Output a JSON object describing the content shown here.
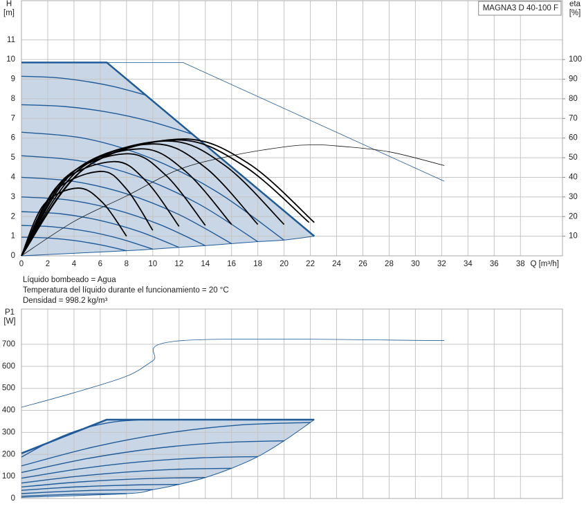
{
  "chart_data": [
    {
      "type": "line",
      "title": "MAGNA3 D 40-100 F",
      "x_label": "Q [m³/h]",
      "y_label": "H",
      "y_unit": "[m]",
      "y2_label": "eta",
      "y2_unit": "[%]",
      "xlim": [
        0,
        41.2
      ],
      "xticks": [
        0,
        2,
        4,
        6,
        8,
        10,
        12,
        14,
        16,
        18,
        20,
        22,
        24,
        26,
        28,
        30,
        32,
        34,
        36,
        38
      ],
      "ylim": [
        0,
        13
      ],
      "yticks": [
        0,
        1,
        2,
        3,
        4,
        5,
        6,
        7,
        8,
        9,
        10,
        11
      ],
      "y2lim": [
        0,
        130
      ],
      "y2ticks": [
        10,
        20,
        30,
        40,
        50,
        60,
        70,
        80,
        90,
        100
      ],
      "grid": true,
      "series": [
        {
          "color": "#1f5b98",
          "width": 2.5,
          "smooth": false,
          "x": [
            0,
            6.5,
            22.3
          ],
          "values": [
            9.85,
            9.85,
            1.0
          ]
        },
        {
          "color": "#1f5b98",
          "width": 1,
          "smooth": true,
          "fill": "#c8d6e6",
          "x": [
            0,
            8,
            10,
            12,
            14,
            16,
            18,
            20,
            22.3
          ],
          "values": [
            0,
            0.26,
            0.34,
            0.43,
            0.52,
            0.62,
            0.72,
            0.8,
            1.0
          ]
        },
        {
          "color": "#1f5b98",
          "width": 1.4,
          "smooth": true,
          "x": [
            0,
            2.35,
            4.7,
            7.05,
            9.4
          ],
          "values": [
            9.15,
            9.09,
            8.91,
            8.62,
            8.2
          ]
        },
        {
          "color": "#1f5b98",
          "width": 1.4,
          "smooth": true,
          "x": [
            0,
            3.25,
            6.5,
            9.75,
            13
          ],
          "values": [
            7.7,
            7.61,
            7.33,
            6.86,
            6.2
          ]
        },
        {
          "color": "#1f5b98",
          "width": 1.4,
          "smooth": true,
          "x": [
            0,
            5,
            10,
            15,
            20
          ],
          "values": [
            6.3,
            5.96,
            4.93,
            3.21,
            0.8
          ]
        },
        {
          "color": "#1f5b98",
          "width": 1.4,
          "smooth": true,
          "x": [
            0,
            4.5,
            9,
            13.5,
            18
          ],
          "values": [
            5.1,
            4.83,
            4.01,
            2.64,
            0.72
          ]
        },
        {
          "color": "#1f5b98",
          "width": 1.4,
          "smooth": true,
          "x": [
            0,
            4,
            8,
            12,
            16
          ],
          "values": [
            4.0,
            3.79,
            3.16,
            2.1,
            0.62
          ]
        },
        {
          "color": "#1f5b98",
          "width": 1.4,
          "smooth": true,
          "x": [
            0,
            3.5,
            7,
            10.5,
            14
          ],
          "values": [
            3.0,
            2.85,
            2.38,
            1.6,
            0.52
          ]
        },
        {
          "color": "#1f5b98",
          "width": 1.4,
          "smooth": true,
          "x": [
            0,
            3,
            6,
            9,
            12
          ],
          "values": [
            2.25,
            2.14,
            1.8,
            1.23,
            0.43
          ]
        },
        {
          "color": "#1f5b98",
          "width": 1.4,
          "smooth": true,
          "x": [
            0,
            2.5,
            5,
            7.5,
            10
          ],
          "values": [
            1.55,
            1.47,
            1.25,
            0.87,
            0.34
          ]
        },
        {
          "color": "#1f5b98",
          "width": 1.4,
          "smooth": true,
          "x": [
            0,
            2,
            4,
            6,
            8
          ],
          "values": [
            0.95,
            0.91,
            0.78,
            0.56,
            0.26
          ]
        },
        {
          "color": "#1f5b98",
          "width": 0.8,
          "smooth": false,
          "x": [
            6.5,
            12.3,
            32.2
          ],
          "values": [
            9.85,
            9.85,
            3.8
          ]
        },
        {
          "color": "#111111",
          "width": 0.8,
          "smooth": true,
          "axis": "y2",
          "x": [
            0,
            4,
            8,
            12,
            16,
            20,
            22,
            24,
            28,
            32.2
          ],
          "values": [
            0,
            17.5,
            30.5,
            44,
            51,
            55.5,
            56.5,
            56,
            53,
            46
          ]
        },
        {
          "color": "#000000",
          "width": 1.8,
          "smooth": true,
          "axis": "y2",
          "x": [
            0,
            1.7,
            4.3,
            6.2,
            8
          ],
          "values": [
            0,
            26,
            34.5,
            27,
            10
          ]
        },
        {
          "color": "#000000",
          "width": 1.8,
          "smooth": true,
          "axis": "y2",
          "x": [
            0,
            2.4,
            6,
            8,
            10
          ],
          "values": [
            0,
            32,
            43,
            34,
            13
          ]
        },
        {
          "color": "#000000",
          "width": 1.8,
          "smooth": true,
          "axis": "y2",
          "x": [
            0,
            2.8,
            7,
            9.5,
            12
          ],
          "values": [
            0,
            36,
            48,
            38,
            15
          ]
        },
        {
          "color": "#000000",
          "width": 1.8,
          "smooth": true,
          "axis": "y2",
          "x": [
            0,
            3.2,
            8,
            11,
            14
          ],
          "values": [
            0,
            39,
            52,
            41,
            15.5
          ]
        },
        {
          "color": "#000000",
          "width": 1.8,
          "smooth": true,
          "axis": "y2",
          "x": [
            0,
            3.6,
            9,
            12.5,
            16
          ],
          "values": [
            0,
            41,
            54.5,
            43,
            16
          ]
        },
        {
          "color": "#000000",
          "width": 1.8,
          "smooth": true,
          "axis": "y2",
          "x": [
            0,
            4,
            10,
            14,
            18
          ],
          "values": [
            0,
            43,
            57,
            45,
            16
          ]
        },
        {
          "color": "#000000",
          "width": 1.8,
          "smooth": true,
          "axis": "y2",
          "x": [
            0,
            4.4,
            11,
            15.5,
            20
          ],
          "values": [
            0,
            44,
            58.5,
            46,
            16
          ]
        },
        {
          "color": "#000000",
          "width": 1.8,
          "smooth": true,
          "axis": "y2",
          "x": [
            0,
            4.7,
            11.8,
            16.9,
            21.9
          ],
          "values": [
            0,
            44,
            59,
            46,
            17
          ]
        },
        {
          "color": "#000000",
          "width": 1.8,
          "smooth": true,
          "axis": "y2",
          "x": [
            0,
            4.9,
            12.2,
            17.3,
            22.3
          ],
          "values": [
            0,
            45,
            59.5,
            47,
            17
          ]
        }
      ]
    },
    {
      "type": "line",
      "y_label": "P1",
      "y_unit": "[W]",
      "xlim": [
        0,
        41.2
      ],
      "ylim": [
        0,
        860
      ],
      "yticks": [
        0,
        100,
        200,
        300,
        400,
        500,
        600,
        700
      ],
      "grid": true,
      "series": [
        {
          "color": "#1f5b98",
          "width": 2.5,
          "smooth": false,
          "x": [
            0,
            6.5,
            22.3
          ],
          "values": [
            205,
            358,
            358
          ]
        },
        {
          "color": "#1f5b98",
          "width": 1,
          "smooth": true,
          "fill": "#c8d6e6",
          "x": [
            0,
            8,
            10,
            12,
            14,
            16,
            18,
            20,
            22,
            22.3
          ],
          "values": [
            5,
            22,
            40,
            64,
            95,
            137,
            190,
            262,
            345,
            358
          ]
        },
        {
          "color": "#1f5b98",
          "width": 1.4,
          "smooth": true,
          "x": [
            0,
            2.325,
            4.65,
            6.975,
            9.3
          ],
          "values": [
            188,
            262,
            316,
            347,
            358
          ]
        },
        {
          "color": "#1f5b98",
          "width": 1.4,
          "smooth": true,
          "x": [
            0,
            5.5,
            11,
            16.5,
            22
          ],
          "values": [
            148,
            234,
            296,
            333,
            345
          ]
        },
        {
          "color": "#1f5b98",
          "width": 1.4,
          "smooth": true,
          "x": [
            0,
            5,
            10,
            15,
            20
          ],
          "values": [
            118,
            181,
            226,
            253,
            262
          ]
        },
        {
          "color": "#1f5b98",
          "width": 1.4,
          "smooth": true,
          "x": [
            0,
            4.5,
            9,
            13.5,
            18
          ],
          "values": [
            92,
            135,
            166,
            184,
            190
          ]
        },
        {
          "color": "#1f5b98",
          "width": 1.4,
          "smooth": true,
          "x": [
            0,
            4,
            8,
            12,
            16
          ],
          "values": [
            70,
            99,
            120,
            133,
            137
          ]
        },
        {
          "color": "#1f5b98",
          "width": 1.4,
          "smooth": true,
          "x": [
            0,
            3.5,
            7,
            10.5,
            14
          ],
          "values": [
            52,
            71,
            84,
            92,
            95
          ]
        },
        {
          "color": "#1f5b98",
          "width": 1.4,
          "smooth": true,
          "x": [
            0,
            3,
            6,
            9,
            12
          ],
          "values": [
            37,
            49,
            57,
            62,
            64
          ]
        },
        {
          "color": "#1f5b98",
          "width": 1.4,
          "smooth": true,
          "x": [
            0,
            2.5,
            5,
            7.5,
            10
          ],
          "values": [
            22,
            30,
            36,
            39,
            40
          ]
        },
        {
          "color": "#1f5b98",
          "width": 1.4,
          "smooth": true,
          "x": [
            0,
            2,
            4,
            6,
            8
          ],
          "values": [
            10,
            15,
            19,
            21,
            22
          ]
        },
        {
          "color": "#1f5b98",
          "width": 0.8,
          "smooth": true,
          "x": [
            0,
            4,
            8,
            10,
            12.3,
            32.2
          ],
          "values": [
            414,
            480,
            555,
            625,
            717,
            717
          ]
        }
      ]
    }
  ],
  "notes": [
    "Líquido bombeado = Agua",
    "Temperatura del líquido durante el funcionamiento = 20 °C",
    "Densidad = 998.2 kg/m³"
  ]
}
